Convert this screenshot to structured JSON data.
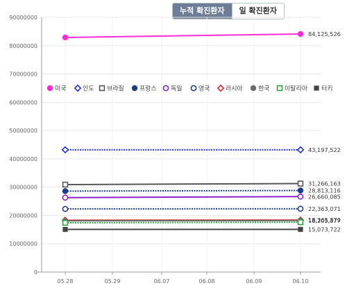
{
  "tabs": [
    {
      "label": "누적 확진환자",
      "active": true
    },
    {
      "label": "일 확진환자",
      "active": false
    }
  ],
  "chart_data": {
    "type": "line",
    "x": [
      "05.28",
      "05.29",
      "06.07",
      "06.08",
      "06.09",
      "06.10"
    ],
    "ylim": [
      0,
      90000000
    ],
    "yticks": [
      0,
      10000000,
      20000000,
      30000000,
      40000000,
      50000000,
      60000000,
      70000000,
      80000000,
      90000000
    ],
    "grid": true,
    "legend_position": "top",
    "series": [
      {
        "name": "미국",
        "color": "#ff2bd6",
        "marker": "filled-circle",
        "dash": false,
        "points": [
          {
            "x": "05.28",
            "y": 82900000
          },
          {
            "x": "06.10",
            "y": 84125526
          }
        ],
        "end_label": "84,125,526"
      },
      {
        "name": "인도",
        "color": "#1f2fe0",
        "marker": "open-diamond",
        "dash": true,
        "points": [
          {
            "x": "05.28",
            "y": 43200000
          },
          {
            "x": "06.10",
            "y": 43197522
          }
        ],
        "end_label": "43,197,522"
      },
      {
        "name": "브라질",
        "color": "#555555",
        "marker": "open-square",
        "dash": false,
        "points": [
          {
            "x": "05.28",
            "y": 30900000
          },
          {
            "x": "06.10",
            "y": 31266163
          }
        ],
        "end_label": "31,266,163"
      },
      {
        "name": "프랑스",
        "color": "#1a3a8a",
        "marker": "filled-circle",
        "dash": true,
        "points": [
          {
            "x": "05.28",
            "y": 28600000
          },
          {
            "x": "06.10",
            "y": 28813116
          }
        ],
        "end_label": "28,813,116"
      },
      {
        "name": "독일",
        "color": "#8a22c7",
        "marker": "open-circle",
        "dash": false,
        "points": [
          {
            "x": "05.28",
            "y": 26300000
          },
          {
            "x": "06.10",
            "y": 26660085
          }
        ],
        "end_label": "26,660,085"
      },
      {
        "name": "영국",
        "color": "#1f3f8f",
        "marker": "open-circle",
        "dash": true,
        "points": [
          {
            "x": "05.28",
            "y": 22300000
          },
          {
            "x": "06.10",
            "y": 22363071
          }
        ],
        "end_label": "22,363,071"
      },
      {
        "name": "러시아",
        "color": "#e0262a",
        "marker": "open-diamond",
        "dash": false,
        "points": [
          {
            "x": "05.28",
            "y": 18300000
          },
          {
            "x": "06.10",
            "y": 18365379
          }
        ],
        "end_label": "18,365,379"
      },
      {
        "name": "한국",
        "color": "#6b6b6b",
        "marker": "filled-circle",
        "dash": false,
        "points": [
          {
            "x": "05.28",
            "y": 18100000
          },
          {
            "x": "06.10",
            "y": 18205877
          }
        ],
        "end_label": "18,205,877"
      },
      {
        "name": "이탈리아",
        "color": "#2ea043",
        "marker": "open-square",
        "dash": true,
        "points": [
          {
            "x": "05.28",
            "y": 17400000
          },
          {
            "x": "06.10",
            "y": 17600000
          }
        ],
        "end_label": ""
      },
      {
        "name": "터키",
        "color": "#444444",
        "marker": "filled-square",
        "dash": false,
        "points": [
          {
            "x": "05.28",
            "y": 15070000
          },
          {
            "x": "06.10",
            "y": 15073722
          }
        ],
        "end_label": "15,073,722"
      }
    ]
  }
}
